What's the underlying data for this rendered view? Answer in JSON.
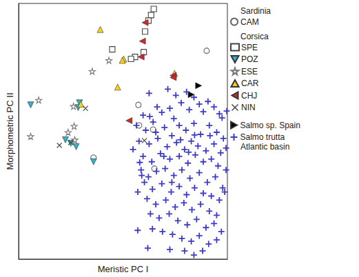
{
  "chart_data": {
    "type": "scatter",
    "x_label": "Meristic PC I",
    "y_label": "Morphometric PC II",
    "xlim": [
      0,
      312
    ],
    "ylim": [
      0,
      373
    ],
    "tick_labels": false,
    "grid": false,
    "legend": "right",
    "groups": [
      {
        "label": "Sardinia",
        "members": [
          "CAM"
        ]
      },
      {
        "label": "Corsica",
        "members": [
          "SPE",
          "POZ",
          "ESE",
          "CAR",
          "CHJ",
          "NIN"
        ]
      },
      {
        "members": [
          "Salmo sp. Spain",
          "Salmo trutta"
        ],
        "footer": "Atlantic basin"
      }
    ],
    "series": [
      {
        "name": "CAM",
        "color": "#666666",
        "marker": "circle-open",
        "values": [
          [
            281,
            304
          ],
          [
            179,
            225
          ],
          [
            180,
            195
          ],
          [
            201,
            189
          ],
          [
            112,
            148
          ],
          [
            203,
            132
          ]
        ]
      },
      {
        "name": "SPE",
        "color": "#444444",
        "marker": "square-open",
        "values": [
          [
            202,
            365
          ],
          [
            198,
            356
          ],
          [
            194,
            348
          ],
          [
            189,
            332
          ],
          [
            140,
            306
          ],
          [
            187,
            302
          ],
          [
            174,
            295
          ],
          [
            168,
            292
          ]
        ]
      },
      {
        "name": "POZ",
        "color": "#33b0c8",
        "marker": "triangle-down",
        "values": [
          [
            18,
            225
          ],
          [
            91,
            228
          ],
          [
            89,
            221
          ],
          [
            70,
            174
          ],
          [
            78,
            169
          ],
          [
            86,
            164
          ],
          [
            112,
            142
          ]
        ]
      },
      {
        "name": "ESE",
        "color": "#777777",
        "marker": "star-open",
        "values": [
          [
            30,
            232
          ],
          [
            18,
            179
          ],
          [
            110,
            274
          ],
          [
            135,
            290
          ],
          [
            82,
            223
          ],
          [
            83,
            194
          ],
          [
            84,
            174
          ],
          [
            74,
            185
          ]
        ]
      },
      {
        "name": "CAR",
        "color": "#f5d020",
        "marker": "triangle-up",
        "values": [
          [
            122,
            335
          ],
          [
            157,
            292
          ],
          [
            155,
            290
          ],
          [
            148,
            251
          ],
          [
            93,
            226
          ],
          [
            233,
            271
          ]
        ]
      },
      {
        "name": "CHJ",
        "color": "#cc2a2a",
        "marker": "triangle-left",
        "values": [
          [
            189,
            345
          ],
          [
            185,
            318
          ],
          [
            183,
            295
          ],
          [
            231,
            268
          ],
          [
            231,
            265
          ],
          [
            165,
            202
          ]
        ]
      },
      {
        "name": "NIN",
        "color": "#444444",
        "marker": "x",
        "values": [
          [
            61,
            166
          ],
          [
            78,
            170
          ],
          [
            100,
            220
          ],
          [
            188,
            173
          ]
        ]
      },
      {
        "name": "Salmo sp. Spain",
        "color": "#000000",
        "marker": "triangle-right",
        "values": [
          [
            269,
            253
          ],
          [
            258,
            240
          ]
        ]
      },
      {
        "name": "Salmo trutta",
        "color": "#3b3bc4",
        "marker": "plus",
        "values": [
          [
            223,
            248
          ],
          [
            235,
            239
          ],
          [
            251,
            244
          ],
          [
            262,
            236
          ],
          [
            270,
            226
          ],
          [
            283,
            230
          ],
          [
            292,
            222
          ],
          [
            300,
            212
          ],
          [
            207,
            222
          ],
          [
            214,
            214
          ],
          [
            226,
            220
          ],
          [
            243,
            228
          ],
          [
            255,
            218
          ],
          [
            276,
            215
          ],
          [
            304,
            206
          ],
          [
            196,
            208
          ],
          [
            186,
            210
          ],
          [
            201,
            200
          ],
          [
            232,
            205
          ],
          [
            176,
            195
          ],
          [
            190,
            188
          ],
          [
            205,
            185
          ],
          [
            218,
            192
          ],
          [
            229,
            180
          ],
          [
            240,
            195
          ],
          [
            250,
            188
          ],
          [
            262,
            198
          ],
          [
            272,
            182
          ],
          [
            285,
            195
          ],
          [
            296,
            185
          ],
          [
            306,
            176
          ],
          [
            180,
            172
          ],
          [
            195,
            168
          ],
          [
            208,
            176
          ],
          [
            222,
            164
          ],
          [
            236,
            170
          ],
          [
            248,
            160
          ],
          [
            258,
            172
          ],
          [
            268,
            165
          ],
          [
            280,
            158
          ],
          [
            292,
            168
          ],
          [
            302,
            155
          ],
          [
            186,
            150
          ],
          [
            199,
            142
          ],
          [
            212,
            154
          ],
          [
            226,
            146
          ],
          [
            240,
            150
          ],
          [
            253,
            140
          ],
          [
            264,
            152
          ],
          [
            276,
            142
          ],
          [
            288,
            146
          ],
          [
            298,
            136
          ],
          [
            310,
            162
          ],
          [
            171,
            160
          ],
          [
            183,
            130
          ],
          [
            194,
            120
          ],
          [
            206,
            128
          ],
          [
            219,
            132
          ],
          [
            232,
            122
          ],
          [
            244,
            130
          ],
          [
            256,
            118
          ],
          [
            270,
            126
          ],
          [
            282,
            112
          ],
          [
            294,
            120
          ],
          [
            305,
            104
          ],
          [
            188,
            112
          ],
          [
            200,
            102
          ],
          [
            214,
            110
          ],
          [
            228,
            98
          ],
          [
            240,
            106
          ],
          [
            251,
            94
          ],
          [
            263,
            104
          ],
          [
            276,
            96
          ],
          [
            288,
            92
          ],
          [
            300,
            86
          ],
          [
            192,
            88
          ],
          [
            205,
            80
          ],
          [
            220,
            86
          ],
          [
            234,
            76
          ],
          [
            247,
            82
          ],
          [
            259,
            72
          ],
          [
            272,
            80
          ],
          [
            285,
            70
          ],
          [
            296,
            64
          ],
          [
            178,
            98
          ],
          [
            197,
            66
          ],
          [
            210,
            60
          ],
          [
            225,
            66
          ],
          [
            238,
            56
          ],
          [
            252,
            50
          ],
          [
            266,
            58
          ],
          [
            280,
            46
          ],
          [
            292,
            52
          ],
          [
            303,
            40
          ],
          [
            215,
            40
          ],
          [
            230,
            36
          ],
          [
            244,
            30
          ],
          [
            258,
            26
          ],
          [
            270,
            34
          ],
          [
            284,
            22
          ],
          [
            296,
            28
          ],
          [
            226,
            14
          ],
          [
            248,
            12
          ],
          [
            262,
            6
          ],
          [
            275,
            12
          ],
          [
            193,
            16
          ],
          [
            178,
            42
          ],
          [
            200,
            44
          ],
          [
            308,
            98
          ],
          [
            310,
            130
          ],
          [
            195,
            242
          ],
          [
            311,
            216
          ],
          [
            263,
            181
          ],
          [
            229,
            112
          ],
          [
            254,
            156
          ],
          [
            217,
            150
          ],
          [
            242,
            174
          ],
          [
            286,
            180
          ],
          [
            181,
            141
          ],
          [
            184,
            122
          ]
        ]
      }
    ]
  }
}
